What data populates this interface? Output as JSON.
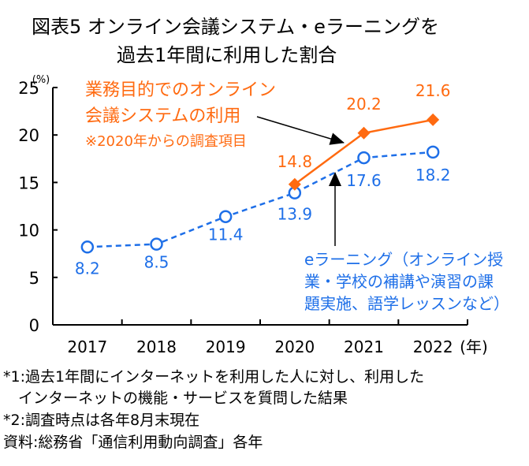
{
  "title_line1": "図表5 オンライン会議システム・eラーニングを",
  "title_line2": "過去1年間に利用した割合",
  "colors": {
    "online": "#FF6A10",
    "elearning": "#1E6FE8",
    "axis": "#000000"
  },
  "chart_data": {
    "type": "line",
    "title": "図表5 オンライン会議システム・eラーニングを 過去1年間に利用した割合",
    "ylabel": "(%)",
    "xlabel": "(年)",
    "ylim": [
      0,
      25
    ],
    "yticks": [
      "0",
      "5",
      "10",
      "15",
      "20",
      "25"
    ],
    "categories": [
      "2017",
      "2018",
      "2019",
      "2020",
      "2021",
      "2022"
    ],
    "grid": false,
    "series": [
      {
        "name": "業務目的でのオンライン会議システムの利用",
        "annotation": [
          "業務目的でのオンライン",
          "会議システムの利用",
          "※2020年からの調査項目"
        ],
        "values": [
          null,
          null,
          null,
          14.8,
          20.2,
          21.6
        ],
        "labels": [
          "",
          "",
          "",
          "14.8",
          "20.2",
          "21.6"
        ],
        "style": "solid-diamond"
      },
      {
        "name": "eラーニング(オンライン授業・学校の補講や演習の課題実施、語学レッスンなど)",
        "annotation": [
          "eラーニング（オンライン授",
          "業・学校の補講や演習の課",
          "題実施、語学レッスンなど）"
        ],
        "values": [
          8.2,
          8.5,
          11.4,
          13.9,
          17.6,
          18.2
        ],
        "labels": [
          "8.2",
          "8.5",
          "11.4",
          "13.9",
          "17.6",
          "18.2"
        ],
        "style": "dashed-circle"
      }
    ]
  },
  "notes": [
    "*1:過去1年間にインターネットを利用した人に対し、利用した",
    "　インターネットの機能・サービスを質問した結果",
    "*2:調査時点は各年8月末現在",
    "資料:総務省「通信利用動向調査」各年"
  ]
}
